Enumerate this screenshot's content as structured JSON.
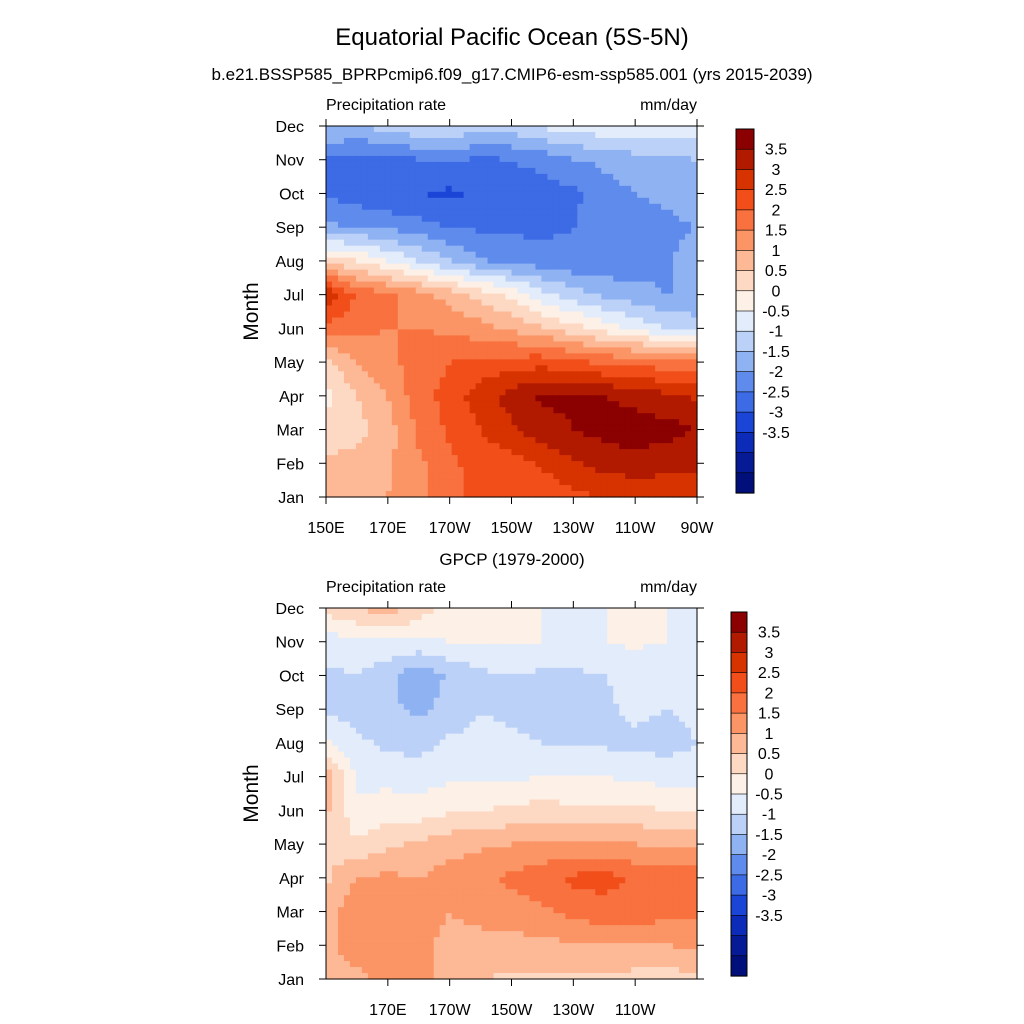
{
  "figure": {
    "title": "Equatorial Pacific Ocean (5S-5N)",
    "colorbar_levels": [
      "3.5",
      "3",
      "2.5",
      "2",
      "1.5",
      "1",
      "0.5",
      "0",
      "-0.5",
      "-1",
      "-1.5",
      "-2",
      "-2.5",
      "-3",
      "-3.5"
    ],
    "colors": [
      "#8b0000",
      "#b21a00",
      "#d63300",
      "#f14e1a",
      "#f8713e",
      "#fb9565",
      "#fdb896",
      "#fdd9c4",
      "#fdf0e6",
      "#e3ecfb",
      "#bcd1f7",
      "#8fb2f2",
      "#5f8cec",
      "#3c6be5",
      "#1a45d6",
      "#0b2bb8",
      "#061a96",
      "#000f7a"
    ]
  },
  "chart_data": [
    {
      "type": "heatmap",
      "panel": "top",
      "title": "b.e21.BSSP585_BPRPcmip6.f09_g17.CMIP6-esm-ssp585.001 (yrs 2015-2039)",
      "left_label": "Precipitation rate",
      "right_label": "mm/day",
      "ylabel": "Month",
      "xlabel": "",
      "x_ticks": [
        "150E",
        "170E",
        "170W",
        "150W",
        "130W",
        "110W",
        "90W"
      ],
      "y_ticks": [
        "Jan",
        "Feb",
        "Mar",
        "Apr",
        "May",
        "Jun",
        "Jul",
        "Aug",
        "Sep",
        "Oct",
        "Nov",
        "Dec"
      ],
      "x": [
        150,
        160,
        170,
        180,
        190,
        200,
        210,
        220,
        230,
        240,
        250,
        260,
        270
      ],
      "y": [
        "Jan",
        "Feb",
        "Mar",
        "Apr",
        "May",
        "Jun",
        "Jul",
        "Aug",
        "Sep",
        "Oct",
        "Nov",
        "Dec"
      ],
      "z": [
        [
          0.5,
          0.8,
          1.0,
          1.3,
          1.8,
          2.2,
          2.0,
          2.1,
          2.4,
          2.5,
          2.6,
          2.6,
          2.7
        ],
        [
          0.6,
          0.7,
          0.9,
          1.4,
          1.9,
          2.2,
          2.3,
          2.6,
          2.9,
          3.2,
          3.3,
          3.2,
          3.1
        ],
        [
          0.2,
          0.3,
          0.8,
          1.6,
          2.1,
          2.5,
          2.9,
          3.3,
          3.5,
          3.7,
          3.8,
          3.7,
          3.5
        ],
        [
          -0.2,
          0.5,
          1.0,
          1.8,
          2.2,
          2.8,
          3.2,
          3.6,
          3.6,
          3.5,
          3.3,
          3.1,
          2.9
        ],
        [
          0.4,
          1.0,
          1.4,
          1.7,
          2.0,
          2.1,
          2.2,
          2.3,
          2.1,
          1.9,
          1.8,
          1.7,
          1.6
        ],
        [
          1.8,
          1.6,
          1.5,
          1.5,
          1.4,
          1.2,
          0.9,
          0.6,
          0.2,
          -0.2,
          -0.6,
          -1.0,
          -1.2
        ],
        [
          3.0,
          1.9,
          1.6,
          1.2,
          0.8,
          0.3,
          -0.1,
          -0.8,
          -1.3,
          -1.6,
          -1.8,
          -2.0,
          -2.0
        ],
        [
          0.3,
          0.0,
          -0.5,
          -1.0,
          -1.5,
          -1.9,
          -2.2,
          -2.3,
          -2.4,
          -2.4,
          -2.3,
          -2.1,
          -1.7
        ],
        [
          -1.9,
          -2.0,
          -2.1,
          -2.3,
          -2.5,
          -2.6,
          -2.6,
          -2.6,
          -2.5,
          -2.4,
          -2.2,
          -2.1,
          -2.0
        ],
        [
          -2.6,
          -2.8,
          -3.0,
          -3.0,
          -3.1,
          -2.9,
          -2.8,
          -2.8,
          -2.6,
          -2.2,
          -2.0,
          -1.9,
          -1.8
        ],
        [
          -2.6,
          -2.7,
          -2.7,
          -2.5,
          -2.4,
          -2.6,
          -2.5,
          -2.3,
          -2.0,
          -1.9,
          -1.7,
          -1.6,
          -1.5
        ],
        [
          -1.4,
          -1.5,
          -1.3,
          -1.0,
          -1.1,
          -1.2,
          -1.2,
          -0.9,
          -0.8,
          -0.6,
          -0.6,
          -0.6,
          -0.7
        ]
      ],
      "zlim": [
        -3.5,
        3.5
      ]
    },
    {
      "type": "heatmap",
      "panel": "bottom",
      "title": "GPCP (1979-2000)",
      "left_label": "Precipitation rate",
      "right_label": "mm/day",
      "ylabel": "Month",
      "xlabel": "",
      "x_ticks": [
        "170E",
        "170W",
        "150W",
        "130W",
        "110W"
      ],
      "y_ticks": [
        "Jan",
        "Feb",
        "Mar",
        "Apr",
        "May",
        "Jun",
        "Jul",
        "Aug",
        "Sep",
        "Oct",
        "Nov",
        "Dec"
      ],
      "x": [
        150,
        160,
        170,
        180,
        190,
        200,
        210,
        220,
        230,
        240,
        250,
        260,
        270
      ],
      "y": [
        "Jan",
        "Feb",
        "Mar",
        "Apr",
        "May",
        "Jun",
        "Jul",
        "Aug",
        "Sep",
        "Oct",
        "Nov",
        "Dec"
      ],
      "z": [
        [
          0.8,
          0.9,
          1.1,
          1.2,
          0.7,
          0.5,
          0.4,
          0.4,
          0.4,
          0.4,
          0.3,
          0.3,
          0.3
        ],
        [
          0.9,
          1.2,
          1.3,
          1.1,
          0.9,
          0.9,
          0.8,
          0.9,
          0.9,
          1.0,
          1.0,
          1.0,
          1.1
        ],
        [
          0.8,
          1.3,
          1.4,
          1.2,
          1.0,
          1.1,
          1.3,
          1.4,
          1.7,
          1.8,
          1.8,
          1.7,
          1.6
        ],
        [
          0.4,
          1.0,
          1.1,
          1.0,
          1.2,
          1.4,
          1.6,
          1.8,
          2.1,
          2.2,
          1.9,
          2.0,
          1.9
        ],
        [
          0.4,
          0.1,
          0.4,
          0.6,
          0.8,
          0.9,
          1.0,
          1.1,
          1.1,
          1.0,
          1.0,
          0.9,
          0.8
        ],
        [
          0.6,
          -0.4,
          -0.2,
          -0.3,
          -0.1,
          0.0,
          0.1,
          0.2,
          0.1,
          0.1,
          0.1,
          0.0,
          0.0
        ],
        [
          0.8,
          -0.6,
          -0.7,
          -0.7,
          -0.6,
          -0.6,
          -0.6,
          -0.5,
          -0.5,
          -0.5,
          -0.6,
          -0.7,
          -0.8
        ],
        [
          -0.4,
          -0.9,
          -1.1,
          -1.2,
          -0.9,
          -0.9,
          -0.9,
          -1.0,
          -1.0,
          -1.1,
          -1.1,
          -1.2,
          -1.0
        ],
        [
          -1.1,
          -1.2,
          -1.4,
          -1.6,
          -1.3,
          -1.0,
          -1.1,
          -1.2,
          -1.2,
          -1.1,
          -0.9,
          -1.0,
          -0.9
        ],
        [
          -1.1,
          -1.0,
          -1.3,
          -1.9,
          -1.4,
          -1.1,
          -1.0,
          -1.1,
          -1.1,
          -1.0,
          -0.8,
          -1.0,
          -1.0
        ],
        [
          -0.8,
          -0.6,
          -0.6,
          -0.6,
          -0.5,
          -0.5,
          -0.4,
          -0.5,
          -0.6,
          -0.5,
          -0.4,
          -0.5,
          -0.6
        ],
        [
          0.2,
          0.5,
          0.8,
          0.3,
          -0.2,
          -0.3,
          -0.4,
          -0.5,
          -0.5,
          -0.5,
          -0.5,
          -0.5,
          -0.5
        ]
      ],
      "zlim": [
        -3.5,
        3.5
      ]
    }
  ]
}
